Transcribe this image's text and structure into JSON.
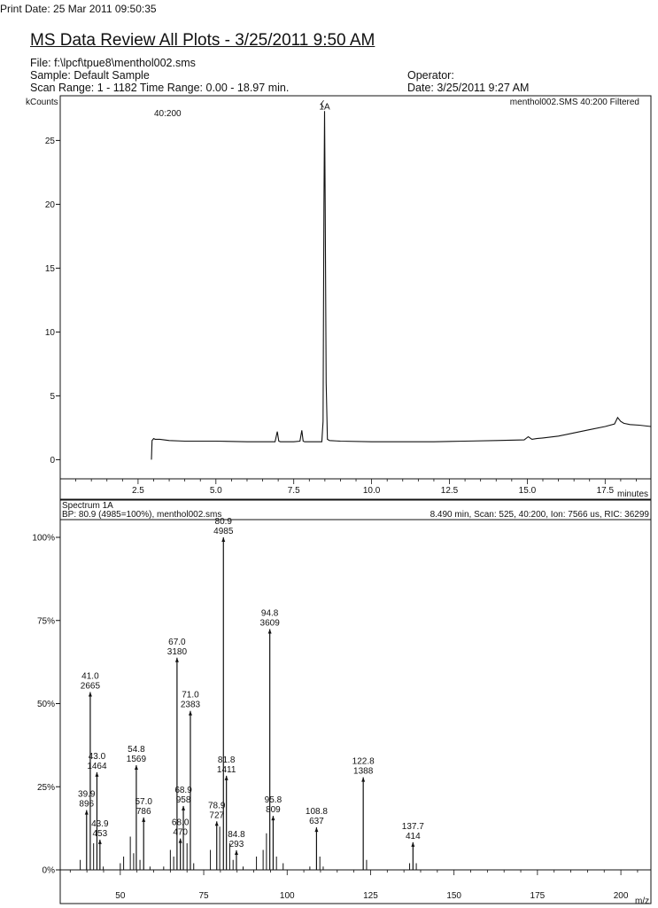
{
  "print_date": "Print Date:  25 Mar 2011 09:50:35",
  "title": "MS Data Review All Plots - 3/25/2011 9:50 AM",
  "header": {
    "file": "File: f:\\lpcf\\tpue8\\menthol002.sms",
    "sample": "Sample: Default Sample",
    "scan_range": "Scan Range: 1 - 1182  Time Range: 0.00 - 18.97 min.",
    "operator": "Operator:",
    "date": "Date: 3/25/2011 9:27 AM"
  },
  "chart_data": [
    {
      "type": "line",
      "ylabel": "kCounts",
      "xlabel": "minutes",
      "ion_range_label": "40:200",
      "peak_label": "1A",
      "trace_label": "menthol002.SMS 40:200 Filtered",
      "xlim": [
        0,
        18.97
      ],
      "ylim": [
        -1.5,
        28.5
      ],
      "xticks": [
        2.5,
        5.0,
        7.5,
        10.0,
        12.5,
        15.0,
        17.5
      ],
      "xtick_labels": [
        "2.5",
        "5.0",
        "7.5",
        "10.0",
        "12.5",
        "15.0",
        "17.5"
      ],
      "yticks": [
        0,
        5,
        10,
        15,
        20,
        25
      ],
      "ytick_labels": [
        "0",
        "5",
        "10",
        "15",
        "20",
        "25"
      ],
      "series": [
        {
          "x": [
            2.93,
            2.95,
            3.0,
            3.05,
            3.2,
            3.5,
            4.0,
            5.0,
            6.0,
            6.9,
            6.97,
            7.02,
            7.07,
            7.5,
            7.7,
            7.76,
            7.8,
            7.85,
            8.2,
            8.4,
            8.44,
            8.47,
            8.49,
            8.51,
            8.54,
            8.58,
            8.65,
            9.0,
            10.0,
            11.0,
            12.0,
            13.0,
            14.0,
            14.9,
            15.03,
            15.15,
            15.3,
            15.5,
            16.0,
            16.5,
            17.0,
            17.5,
            17.8,
            17.9,
            18.0,
            18.1,
            18.3,
            18.6,
            18.97
          ],
          "y": [
            0.0,
            1.5,
            1.65,
            1.6,
            1.6,
            1.5,
            1.45,
            1.45,
            1.4,
            1.4,
            2.2,
            1.45,
            1.4,
            1.4,
            1.45,
            2.3,
            1.45,
            1.4,
            1.4,
            1.4,
            3.0,
            20.0,
            27.3,
            20.0,
            6.0,
            1.6,
            1.5,
            1.45,
            1.4,
            1.4,
            1.4,
            1.45,
            1.5,
            1.55,
            1.8,
            1.6,
            1.65,
            1.7,
            1.85,
            2.1,
            2.35,
            2.6,
            2.8,
            3.3,
            3.0,
            2.85,
            2.75,
            2.7,
            2.6
          ]
        }
      ]
    },
    {
      "type": "bar",
      "panel_title": "Spectrum 1A",
      "bp_info": "BP: 80.9 (4985=100%), menthol002.sms",
      "scan_info": "8.490 min, Scan: 525, 40:200, Ion: 7566 us, RIC: 36299",
      "xlabel": "m/z",
      "xlim": [
        32,
        209
      ],
      "ylim": [
        0,
        105
      ],
      "xticks": [
        50,
        75,
        100,
        125,
        150,
        175,
        200
      ],
      "xtick_labels": [
        "50",
        "75",
        "100",
        "125",
        "150",
        "175",
        "200"
      ],
      "yticks": [
        0,
        25,
        50,
        75,
        100
      ],
      "ytick_labels": [
        "0%",
        "25%",
        "50%",
        "75%",
        "100%"
      ],
      "labeled_peaks": [
        {
          "mz": 39.9,
          "mz_label": "39.9",
          "abundance": 896,
          "abundance_label": "896"
        },
        {
          "mz": 41.0,
          "mz_label": "41.0",
          "abundance": 2665,
          "abundance_label": "2665"
        },
        {
          "mz": 43.0,
          "mz_label": "43.0",
          "abundance": 1464,
          "abundance_label": "1464"
        },
        {
          "mz": 43.9,
          "mz_label": "43.9",
          "abundance": 453,
          "abundance_label": "453"
        },
        {
          "mz": 54.8,
          "mz_label": "54.8",
          "abundance": 1569,
          "abundance_label": "1569"
        },
        {
          "mz": 57.0,
          "mz_label": "57.0",
          "abundance": 786,
          "abundance_label": "786"
        },
        {
          "mz": 67.0,
          "mz_label": "67.0",
          "abundance": 3180,
          "abundance_label": "3180"
        },
        {
          "mz": 68.0,
          "mz_label": "68.0",
          "abundance": 470,
          "abundance_label": "470"
        },
        {
          "mz": 68.9,
          "mz_label": "68.9",
          "abundance": 958,
          "abundance_label": "958"
        },
        {
          "mz": 71.0,
          "mz_label": "71.0",
          "abundance": 2383,
          "abundance_label": "2383"
        },
        {
          "mz": 78.9,
          "mz_label": "78.9",
          "abundance": 727,
          "abundance_label": "727"
        },
        {
          "mz": 80.9,
          "mz_label": "80.9",
          "abundance": 4985,
          "abundance_label": "4985"
        },
        {
          "mz": 81.8,
          "mz_label": "81.8",
          "abundance": 1411,
          "abundance_label": "1411"
        },
        {
          "mz": 84.8,
          "mz_label": "84.8",
          "abundance": 293,
          "abundance_label": "293"
        },
        {
          "mz": 94.8,
          "mz_label": "94.8",
          "abundance": 3609,
          "abundance_label": "3609"
        },
        {
          "mz": 95.8,
          "mz_label": "95.8",
          "abundance": 809,
          "abundance_label": "809"
        },
        {
          "mz": 108.8,
          "mz_label": "108.8",
          "abundance": 637,
          "abundance_label": "637"
        },
        {
          "mz": 122.8,
          "mz_label": "122.8",
          "abundance": 1388,
          "abundance_label": "1388"
        },
        {
          "mz": 137.7,
          "mz_label": "137.7",
          "abundance": 414,
          "abundance_label": "414"
        }
      ],
      "minor_peaks": [
        {
          "mz": 38.0,
          "percent": 3
        },
        {
          "mz": 42.0,
          "percent": 8
        },
        {
          "mz": 44.9,
          "percent": 1
        },
        {
          "mz": 50.0,
          "percent": 2
        },
        {
          "mz": 51.0,
          "percent": 4
        },
        {
          "mz": 53.0,
          "percent": 10
        },
        {
          "mz": 54.0,
          "percent": 5
        },
        {
          "mz": 55.9,
          "percent": 3
        },
        {
          "mz": 58.9,
          "percent": 1
        },
        {
          "mz": 63.0,
          "percent": 1
        },
        {
          "mz": 65.0,
          "percent": 6
        },
        {
          "mz": 66.0,
          "percent": 4
        },
        {
          "mz": 70.0,
          "percent": 8
        },
        {
          "mz": 72.0,
          "percent": 2
        },
        {
          "mz": 77.0,
          "percent": 6
        },
        {
          "mz": 79.8,
          "percent": 13
        },
        {
          "mz": 82.8,
          "percent": 8
        },
        {
          "mz": 83.8,
          "percent": 3
        },
        {
          "mz": 86.8,
          "percent": 1
        },
        {
          "mz": 90.8,
          "percent": 4
        },
        {
          "mz": 92.8,
          "percent": 6
        },
        {
          "mz": 93.8,
          "percent": 11
        },
        {
          "mz": 96.8,
          "percent": 4
        },
        {
          "mz": 98.8,
          "percent": 2
        },
        {
          "mz": 106.8,
          "percent": 1
        },
        {
          "mz": 109.8,
          "percent": 4
        },
        {
          "mz": 110.8,
          "percent": 1
        },
        {
          "mz": 123.8,
          "percent": 3
        },
        {
          "mz": 136.7,
          "percent": 2
        },
        {
          "mz": 138.7,
          "percent": 2
        }
      ]
    }
  ]
}
